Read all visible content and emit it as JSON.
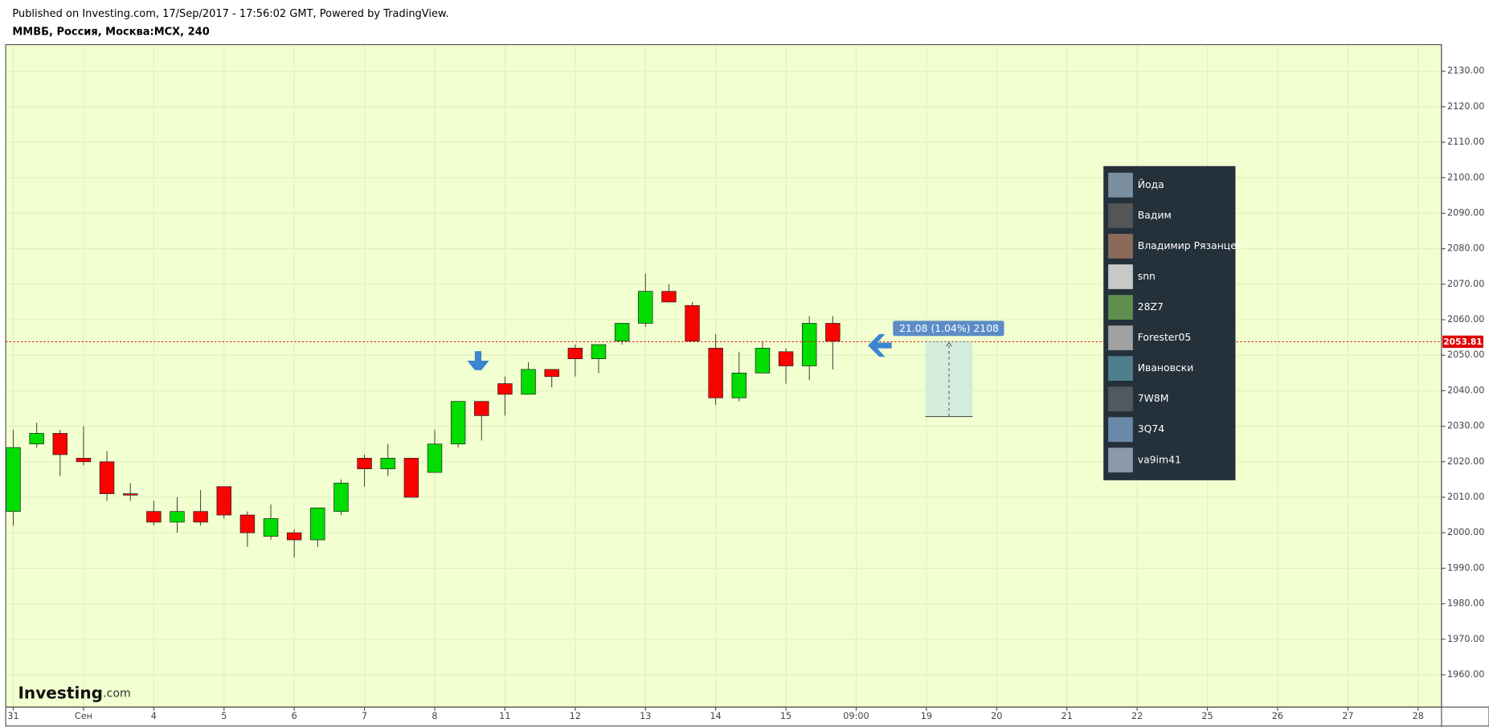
{
  "chart_data": {
    "type": "candlestick",
    "subtitle": "Published on Investing.com, 17/Sep/2017 - 17:56:02 GMT, Powered by TradingView.",
    "title": "ММВБ, Россия, Москва:MCX, 240",
    "x": [
      0,
      1,
      2,
      3,
      4,
      5,
      6,
      7,
      8,
      9,
      10,
      11,
      12,
      13,
      14,
      15,
      16,
      17,
      18,
      19,
      20,
      21,
      22,
      23,
      24,
      25,
      26,
      27,
      28,
      29,
      30,
      31,
      32,
      33,
      34,
      35
    ],
    "open": [
      2006,
      2025,
      2028,
      2021,
      2020,
      2011,
      2006,
      2003,
      2006,
      2013,
      2005,
      1999,
      2000,
      1998,
      2006,
      2021,
      2018,
      2021,
      2017,
      2025,
      2037,
      2042,
      2039,
      2046,
      2052,
      2049,
      2054,
      2059,
      2068,
      2064,
      2052,
      2038,
      2045,
      2051,
      2047,
      2059
    ],
    "high": [
      2029,
      2031,
      2029,
      2030,
      2023,
      2014,
      2009,
      2010,
      2012,
      2013,
      2006,
      2008,
      2001,
      2007,
      2015,
      2022,
      2025,
      2021,
      2029,
      2037,
      2037,
      2044,
      2048,
      2046,
      2053,
      2053,
      2059,
      2073,
      2070,
      2065,
      2056,
      2051,
      2054,
      2052,
      2061,
      2061
    ],
    "low": [
      2002,
      2024,
      2016,
      2019,
      2009,
      2009,
      2002,
      2000,
      2002,
      2004,
      1996,
      1998,
      1993,
      1996,
      2005,
      2013,
      2016,
      2010,
      2017,
      2024,
      2026,
      2033,
      2039,
      2041,
      2044,
      2045,
      2053,
      2058,
      2065,
      2054,
      2036,
      2037,
      2045,
      2042,
      2043,
      2046
    ],
    "close": [
      2024,
      2028,
      2022,
      2020,
      2011,
      2010.8,
      2003,
      2006,
      2003,
      2005,
      2000,
      2004,
      1998,
      2007,
      2014,
      2018,
      2021,
      2010,
      2025,
      2037,
      2033,
      2039,
      2046,
      2044,
      2049,
      2053,
      2059,
      2068,
      2065,
      2054,
      2038,
      2045,
      2052,
      2047,
      2059,
      2054
    ],
    "up_color": "#00dd00",
    "down_color": "#ff0000",
    "xlim": [
      -0.324,
      61.0
    ],
    "xticks": [
      {
        "value": 0,
        "label": "31"
      },
      {
        "value": 3,
        "label": "Сен"
      },
      {
        "value": 6,
        "label": "4"
      },
      {
        "value": 9,
        "label": "5"
      },
      {
        "value": 12,
        "label": "6"
      },
      {
        "value": 15,
        "label": "7"
      },
      {
        "value": 18,
        "label": "8"
      },
      {
        "value": 21,
        "label": "11"
      },
      {
        "value": 24,
        "label": "12"
      },
      {
        "value": 27,
        "label": "13"
      },
      {
        "value": 30,
        "label": "14"
      },
      {
        "value": 33,
        "label": "15"
      },
      {
        "value": 36,
        "label": "09:00"
      },
      {
        "value": 39,
        "label": "19"
      },
      {
        "value": 42,
        "label": "20"
      },
      {
        "value": 45,
        "label": "21"
      },
      {
        "value": 48,
        "label": "22"
      },
      {
        "value": 51,
        "label": "25"
      },
      {
        "value": 54,
        "label": "26"
      },
      {
        "value": 57,
        "label": "27"
      },
      {
        "value": 60,
        "label": "28"
      }
    ],
    "ylim": [
      1950.9,
      2137.5
    ],
    "yticks": [
      {
        "value": 1960,
        "label": "1960.00"
      },
      {
        "value": 1970,
        "label": "1970.00"
      },
      {
        "value": 1980,
        "label": "1980.00"
      },
      {
        "value": 1990,
        "label": "1990.00"
      },
      {
        "value": 2000,
        "label": "2000.00"
      },
      {
        "value": 2010,
        "label": "2010.00"
      },
      {
        "value": 2020,
        "label": "2020.00"
      },
      {
        "value": 2030,
        "label": "2030.00"
      },
      {
        "value": 2040,
        "label": "2040.00"
      },
      {
        "value": 2050,
        "label": "2050.00"
      },
      {
        "value": 2060,
        "label": "2060.00"
      },
      {
        "value": 2070,
        "label": "2070.00"
      },
      {
        "value": 2080,
        "label": "2080.00"
      },
      {
        "value": 2090,
        "label": "2090.00"
      },
      {
        "value": 2100,
        "label": "2100.00"
      },
      {
        "value": 2110,
        "label": "2110.00"
      },
      {
        "value": 2120,
        "label": "2120.00"
      },
      {
        "value": 2130,
        "label": "2130.00"
      }
    ],
    "grid": true,
    "last_price": 2053.81,
    "measure": {
      "label": "21.08 (1.04%) 2108",
      "from": 2032.73,
      "to": 2053.81,
      "x": [
        38.95,
        40.98
      ]
    },
    "brand": {
      "name": "Investing",
      "suffix": ".com"
    }
  },
  "users": [
    "Йода",
    "Вадим",
    "Владимир Рязанцев",
    "snn",
    "28Z7",
    "Forester05",
    "Ивановски",
    "7W8M",
    "3Q74",
    "va9im41"
  ]
}
